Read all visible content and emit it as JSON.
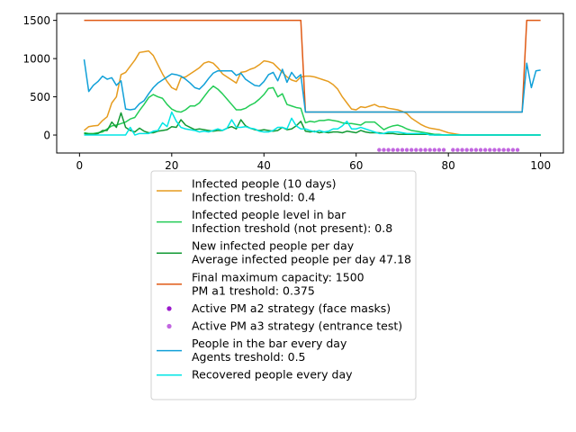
{
  "chart_data": {
    "type": "line",
    "title": "",
    "xlabel": "",
    "ylabel": "",
    "xlim": [
      -4.95,
      104.95
    ],
    "ylim": [
      -235,
      1590
    ],
    "x_ticks": [
      0,
      20,
      40,
      60,
      80,
      100
    ],
    "y_ticks": [
      0,
      500,
      1000,
      1500
    ],
    "grid": false,
    "legend_position": "below plot, centered",
    "series": [
      {
        "name": "Infected people (10 days)\nInfection treshold: 0.4",
        "kind": "line",
        "color": "#e69c1f",
        "x": [
          1,
          2,
          3,
          4,
          5,
          6,
          7,
          8,
          9,
          10,
          11,
          12,
          13,
          14,
          15,
          16,
          17,
          18,
          19,
          20,
          21,
          22,
          23,
          24,
          25,
          26,
          27,
          28,
          29,
          30,
          31,
          32,
          33,
          34,
          35,
          36,
          37,
          38,
          39,
          40,
          41,
          42,
          43,
          44,
          45,
          46,
          47,
          48,
          49,
          50,
          51,
          52,
          53,
          54,
          55,
          56,
          57,
          58,
          59,
          60,
          61,
          62,
          63,
          64,
          65,
          66,
          67,
          68,
          69,
          70,
          71,
          72,
          73,
          74,
          75,
          76,
          77,
          78,
          79,
          80,
          81,
          82,
          83,
          84,
          85,
          86,
          87,
          88,
          89,
          90,
          91,
          92,
          93,
          94,
          95,
          96,
          97,
          98,
          99,
          100
        ],
        "values": [
          60,
          110,
          120,
          125,
          190,
          240,
          420,
          500,
          790,
          820,
          900,
          980,
          1080,
          1090,
          1100,
          1040,
          920,
          800,
          700,
          620,
          590,
          750,
          760,
          800,
          840,
          880,
          940,
          960,
          940,
          880,
          800,
          760,
          720,
          680,
          820,
          830,
          860,
          880,
          920,
          970,
          960,
          940,
          880,
          820,
          760,
          720,
          700,
          760,
          770,
          770,
          760,
          740,
          720,
          700,
          660,
          600,
          500,
          420,
          340,
          330,
          370,
          360,
          380,
          400,
          370,
          370,
          350,
          340,
          330,
          310,
          280,
          220,
          180,
          140,
          110,
          90,
          80,
          70,
          50,
          30,
          20,
          10,
          0,
          0,
          0,
          0,
          0,
          0,
          0,
          0,
          0,
          0,
          0,
          0,
          0,
          0,
          0,
          0,
          0,
          0
        ]
      },
      {
        "name": "Infected people level in bar\nInfection treshold (not present): 0.8",
        "kind": "line",
        "color": "#22cc55",
        "x": [
          1,
          2,
          3,
          4,
          5,
          6,
          7,
          8,
          9,
          10,
          11,
          12,
          13,
          14,
          15,
          16,
          17,
          18,
          19,
          20,
          21,
          22,
          23,
          24,
          25,
          26,
          27,
          28,
          29,
          30,
          31,
          32,
          33,
          34,
          35,
          36,
          37,
          38,
          39,
          40,
          41,
          42,
          43,
          44,
          45,
          46,
          47,
          48,
          49,
          50,
          51,
          52,
          53,
          54,
          55,
          56,
          57,
          58,
          59,
          60,
          61,
          62,
          63,
          64,
          65,
          66,
          67,
          68,
          69,
          70,
          71,
          72,
          73,
          74,
          75,
          76,
          77,
          78,
          79,
          80,
          81,
          82,
          83,
          84,
          85,
          86,
          87,
          88,
          89,
          90,
          91,
          92,
          93,
          94,
          95,
          96,
          97,
          98,
          99,
          100
        ],
        "values": [
          30,
          20,
          20,
          30,
          40,
          80,
          120,
          130,
          150,
          170,
          210,
          230,
          320,
          400,
          490,
          530,
          500,
          480,
          400,
          340,
          310,
          300,
          330,
          380,
          380,
          420,
          500,
          580,
          640,
          600,
          540,
          470,
          400,
          330,
          330,
          350,
          390,
          420,
          470,
          530,
          610,
          620,
          500,
          540,
          400,
          380,
          360,
          350,
          160,
          180,
          170,
          190,
          190,
          200,
          190,
          180,
          160,
          150,
          150,
          140,
          130,
          170,
          170,
          170,
          120,
          70,
          100,
          120,
          130,
          110,
          80,
          60,
          50,
          40,
          30,
          20,
          10,
          10,
          0,
          0,
          0,
          0,
          0,
          0,
          0,
          0,
          0,
          0,
          0,
          0,
          0,
          0,
          0,
          0,
          0,
          0,
          0,
          0,
          0,
          0
        ]
      },
      {
        "name": "New infected people per day\nAverage infected people per day 47.18",
        "kind": "line",
        "color": "#119933",
        "x": [
          1,
          2,
          3,
          4,
          5,
          6,
          7,
          8,
          9,
          10,
          11,
          12,
          13,
          14,
          15,
          16,
          17,
          18,
          19,
          20,
          21,
          22,
          23,
          24,
          25,
          26,
          27,
          28,
          29,
          30,
          31,
          32,
          33,
          34,
          35,
          36,
          37,
          38,
          39,
          40,
          41,
          42,
          43,
          44,
          45,
          46,
          47,
          48,
          49,
          50,
          51,
          52,
          53,
          54,
          55,
          56,
          57,
          58,
          59,
          60,
          61,
          62,
          63,
          64,
          65,
          66,
          67,
          68,
          69,
          70,
          71,
          72,
          73,
          74,
          75,
          76,
          77,
          78,
          79,
          80,
          81,
          82,
          83,
          84,
          85,
          86,
          87,
          88,
          89,
          90,
          91,
          92,
          93,
          94,
          95,
          96,
          97,
          98,
          99,
          100
        ],
        "values": [
          20,
          10,
          10,
          20,
          60,
          60,
          170,
          100,
          290,
          100,
          60,
          40,
          90,
          50,
          30,
          30,
          50,
          60,
          70,
          110,
          100,
          200,
          130,
          100,
          70,
          80,
          70,
          60,
          50,
          60,
          60,
          90,
          110,
          80,
          200,
          120,
          90,
          70,
          60,
          70,
          60,
          50,
          60,
          100,
          70,
          80,
          120,
          180,
          50,
          40,
          50,
          30,
          40,
          30,
          40,
          40,
          30,
          50,
          40,
          30,
          60,
          40,
          30,
          30,
          30,
          20,
          20,
          20,
          10,
          10,
          10,
          10,
          10,
          10,
          10,
          10,
          0,
          0,
          0,
          0,
          0,
          0,
          0,
          0,
          0,
          0,
          0,
          0,
          0,
          0,
          0,
          0,
          0,
          0,
          0,
          0,
          0,
          0,
          0,
          0
        ]
      },
      {
        "name": "Final maximum capacity: 1500\nPM a1 treshold: 0.375",
        "kind": "line",
        "color": "#e05a14",
        "x": [
          1,
          48,
          49,
          96,
          97,
          100
        ],
        "values": [
          1500,
          1500,
          300,
          300,
          1500,
          1500
        ]
      },
      {
        "name": "Active PM a2 strategy (face masks)",
        "kind": "scatter",
        "color": "#9b19cc",
        "x": [],
        "values": []
      },
      {
        "name": "Active PM a3 strategy (entrance test)",
        "kind": "scatter",
        "color": "#c266e0",
        "x": [
          65,
          66,
          67,
          68,
          69,
          70,
          71,
          72,
          73,
          74,
          75,
          76,
          77,
          78,
          79,
          81,
          82,
          83,
          84,
          85,
          86,
          87,
          88,
          89,
          90,
          91,
          92,
          93,
          94,
          95
        ],
        "values": [
          -195,
          -195,
          -195,
          -195,
          -195,
          -195,
          -195,
          -195,
          -195,
          -195,
          -195,
          -195,
          -195,
          -195,
          -195,
          -195,
          -195,
          -195,
          -195,
          -195,
          -195,
          -195,
          -195,
          -195,
          -195,
          -195,
          -195,
          -195,
          -195,
          -195
        ]
      },
      {
        "name": "People in the bar every day\nAgents treshold: 0.5",
        "kind": "line",
        "color": "#10a0d8",
        "x": [
          1,
          2,
          3,
          4,
          5,
          6,
          7,
          8,
          9,
          10,
          11,
          12,
          13,
          14,
          15,
          16,
          17,
          18,
          19,
          20,
          21,
          22,
          23,
          24,
          25,
          26,
          27,
          28,
          29,
          30,
          31,
          32,
          33,
          34,
          35,
          36,
          37,
          38,
          39,
          40,
          41,
          42,
          43,
          44,
          45,
          46,
          47,
          48,
          49,
          50,
          51,
          52,
          53,
          54,
          55,
          56,
          57,
          58,
          59,
          60,
          61,
          62,
          63,
          64,
          65,
          66,
          67,
          68,
          69,
          70,
          71,
          72,
          73,
          74,
          75,
          76,
          77,
          78,
          79,
          80,
          81,
          82,
          83,
          84,
          85,
          86,
          87,
          88,
          89,
          90,
          91,
          92,
          93,
          94,
          95,
          96,
          97,
          98,
          99,
          100
        ],
        "values": [
          990,
          570,
          650,
          700,
          770,
          730,
          750,
          650,
          710,
          340,
          330,
          340,
          410,
          450,
          540,
          620,
          680,
          720,
          760,
          800,
          790,
          770,
          730,
          680,
          620,
          600,
          660,
          740,
          810,
          840,
          840,
          840,
          840,
          780,
          810,
          730,
          690,
          650,
          640,
          700,
          790,
          820,
          710,
          860,
          690,
          820,
          740,
          790,
          300,
          300,
          300,
          300,
          300,
          300,
          300,
          300,
          300,
          300,
          300,
          300,
          300,
          300,
          300,
          300,
          300,
          300,
          300,
          300,
          300,
          300,
          300,
          300,
          300,
          300,
          300,
          300,
          300,
          300,
          300,
          300,
          300,
          300,
          300,
          300,
          300,
          300,
          300,
          300,
          300,
          300,
          300,
          300,
          300,
          300,
          300,
          300,
          940,
          620,
          840,
          850
        ]
      },
      {
        "name": "Recovered people every day",
        "kind": "line",
        "color": "#00e5e5",
        "x": [
          1,
          2,
          3,
          4,
          5,
          6,
          7,
          8,
          9,
          10,
          11,
          12,
          13,
          14,
          15,
          16,
          17,
          18,
          19,
          20,
          21,
          22,
          23,
          24,
          25,
          26,
          27,
          28,
          29,
          30,
          31,
          32,
          33,
          34,
          35,
          36,
          37,
          38,
          39,
          40,
          41,
          42,
          43,
          44,
          45,
          46,
          47,
          48,
          49,
          50,
          51,
          52,
          53,
          54,
          55,
          56,
          57,
          58,
          59,
          60,
          61,
          62,
          63,
          64,
          65,
          66,
          67,
          68,
          69,
          70,
          71,
          72,
          73,
          74,
          75,
          76,
          77,
          78,
          79,
          80,
          81,
          82,
          83,
          84,
          85,
          86,
          87,
          88,
          89,
          90,
          91,
          92,
          93,
          94,
          95,
          96,
          97,
          98,
          99,
          100
        ],
        "values": [
          0,
          0,
          0,
          0,
          0,
          0,
          0,
          0,
          0,
          0,
          100,
          0,
          20,
          20,
          20,
          50,
          60,
          160,
          110,
          300,
          180,
          100,
          80,
          70,
          60,
          40,
          50,
          40,
          60,
          80,
          60,
          90,
          200,
          100,
          100,
          110,
          90,
          80,
          50,
          40,
          40,
          60,
          100,
          100,
          80,
          220,
          120,
          80,
          80,
          60,
          40,
          60,
          40,
          50,
          80,
          80,
          120,
          180,
          80,
          80,
          100,
          80,
          60,
          40,
          20,
          20,
          40,
          40,
          40,
          30,
          20,
          20,
          20,
          20,
          20,
          0,
          0,
          0,
          0,
          0,
          0,
          0,
          0,
          0,
          0,
          0,
          0,
          0,
          0,
          0,
          0,
          0,
          0,
          0,
          0,
          0,
          0,
          0,
          0,
          0
        ]
      }
    ]
  }
}
